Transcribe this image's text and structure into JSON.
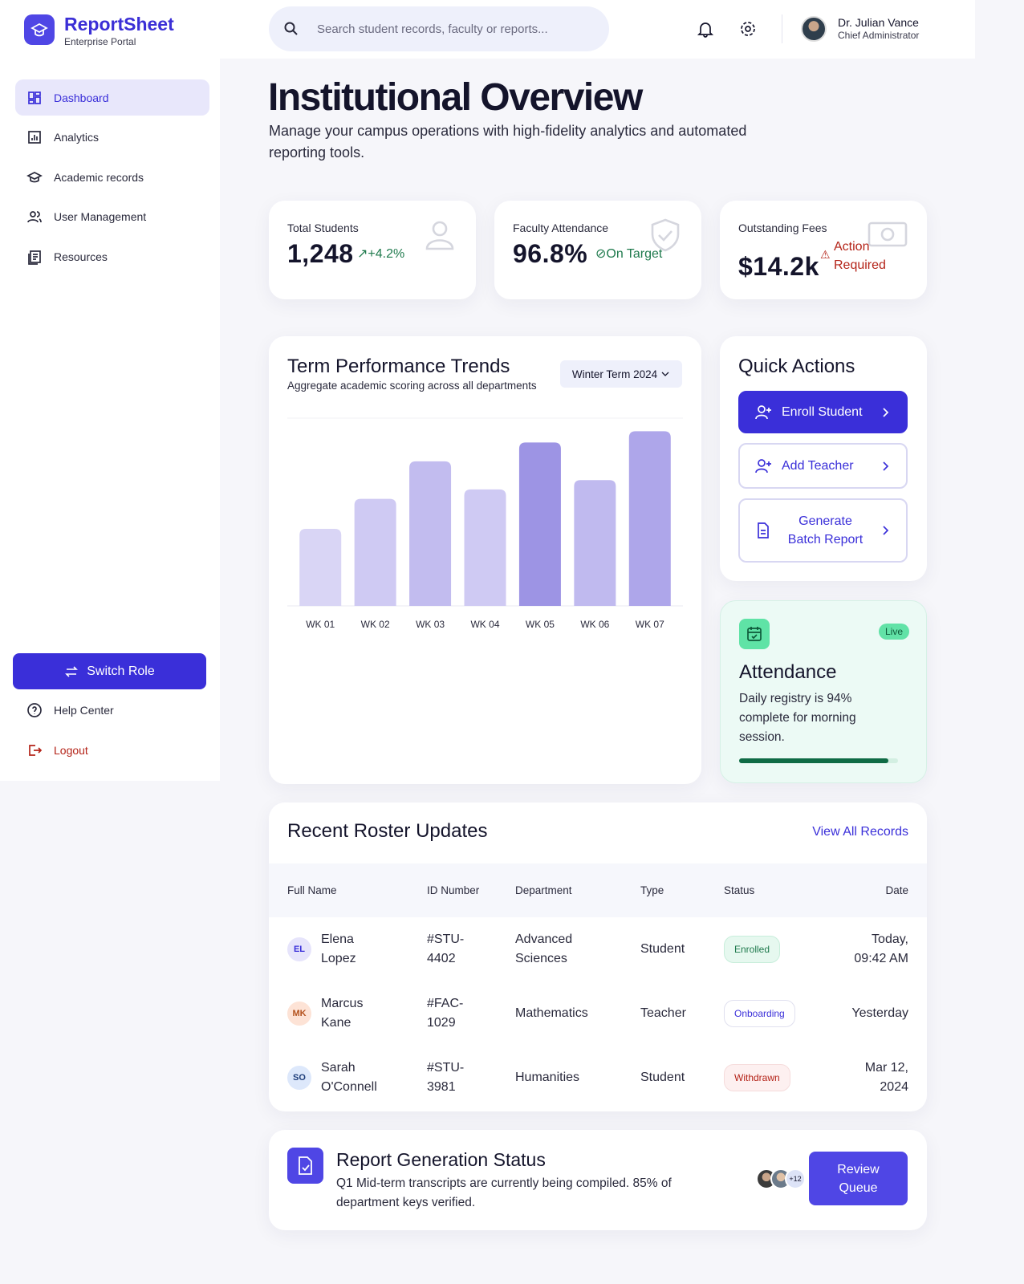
{
  "sidebar": {
    "brand": {
      "title": "ReportSheet",
      "subtitle": "Enterprise Portal"
    },
    "nav": [
      "Dashboard",
      "Analytics",
      "Academic records",
      "User Management",
      "Resources"
    ],
    "switch_role": "Switch Role",
    "help": "Help Center",
    "logout": "Logout"
  },
  "header": {
    "search": "Search student records, faculty or reports...",
    "user": {
      "name": "Dr. Julian Vance",
      "role": "Chief Administrator"
    }
  },
  "page": {
    "title": "Institutional Overview",
    "subtitle": "Manage your campus operations with high-fidelity analytics and automated reporting tools."
  },
  "stats": [
    {
      "label": "Total Students",
      "value": "1,248",
      "badge": "+4.2%"
    },
    {
      "label": "Faculty Attendance",
      "value": "96.8%",
      "badge": "On Target"
    },
    {
      "label": "Outstanding Fees",
      "value": "$14.2k",
      "badge": "Action Required"
    }
  ],
  "chart_data": {
    "type": "bar",
    "title": "Term Performance Trends",
    "subtitle": "Aggregate academic scoring across all departments",
    "term": "Winter Term 2024",
    "categories": [
      "WK 01",
      "WK 02",
      "WK 03",
      "WK 04",
      "WK 05",
      "WK 06",
      "WK 07"
    ],
    "values": [
      41,
      57,
      77,
      62,
      87,
      67,
      93
    ],
    "colors": [
      "#d9d5f5",
      "#cfcaf3",
      "#c2bcef",
      "#cfcaf3",
      "#9d94e4",
      "#c0baef",
      "#aea6ea"
    ],
    "ylim": [
      0,
      100
    ]
  },
  "quick_actions": {
    "title": "Quick Actions",
    "actions": [
      "Enroll Student",
      "Add Teacher",
      "Generate Batch Report"
    ]
  },
  "attendance": {
    "badge": "Live",
    "title": "Attendance",
    "description": "Daily registry is 94% complete for morning session.",
    "progress": 94
  },
  "roster": {
    "title": "Recent Roster Updates",
    "link": "View All Records",
    "columns": [
      "Full Name",
      "ID Number",
      "Department",
      "Type",
      "Status",
      "Date"
    ],
    "rows": [
      [
        "EL",
        "Elena Lopez",
        "#STU-4402",
        "Advanced Sciences",
        "Student",
        "Enrolled",
        "Today, 09:42 AM"
      ],
      [
        "MK",
        "Marcus Kane",
        "#FAC-1029",
        "Mathematics",
        "Teacher",
        "Onboarding",
        "Yesterday"
      ],
      [
        "SO",
        "Sarah O'Connell",
        "#STU-3981",
        "Humanities",
        "Student",
        "Withdrawn",
        "Mar 12, 2024"
      ]
    ]
  },
  "report": {
    "title": "Report Generation Status",
    "description": "Q1 Mid-term transcripts are currently being compiled. 85% of department keys verified.",
    "more": "+12",
    "button": "Review Queue"
  }
}
